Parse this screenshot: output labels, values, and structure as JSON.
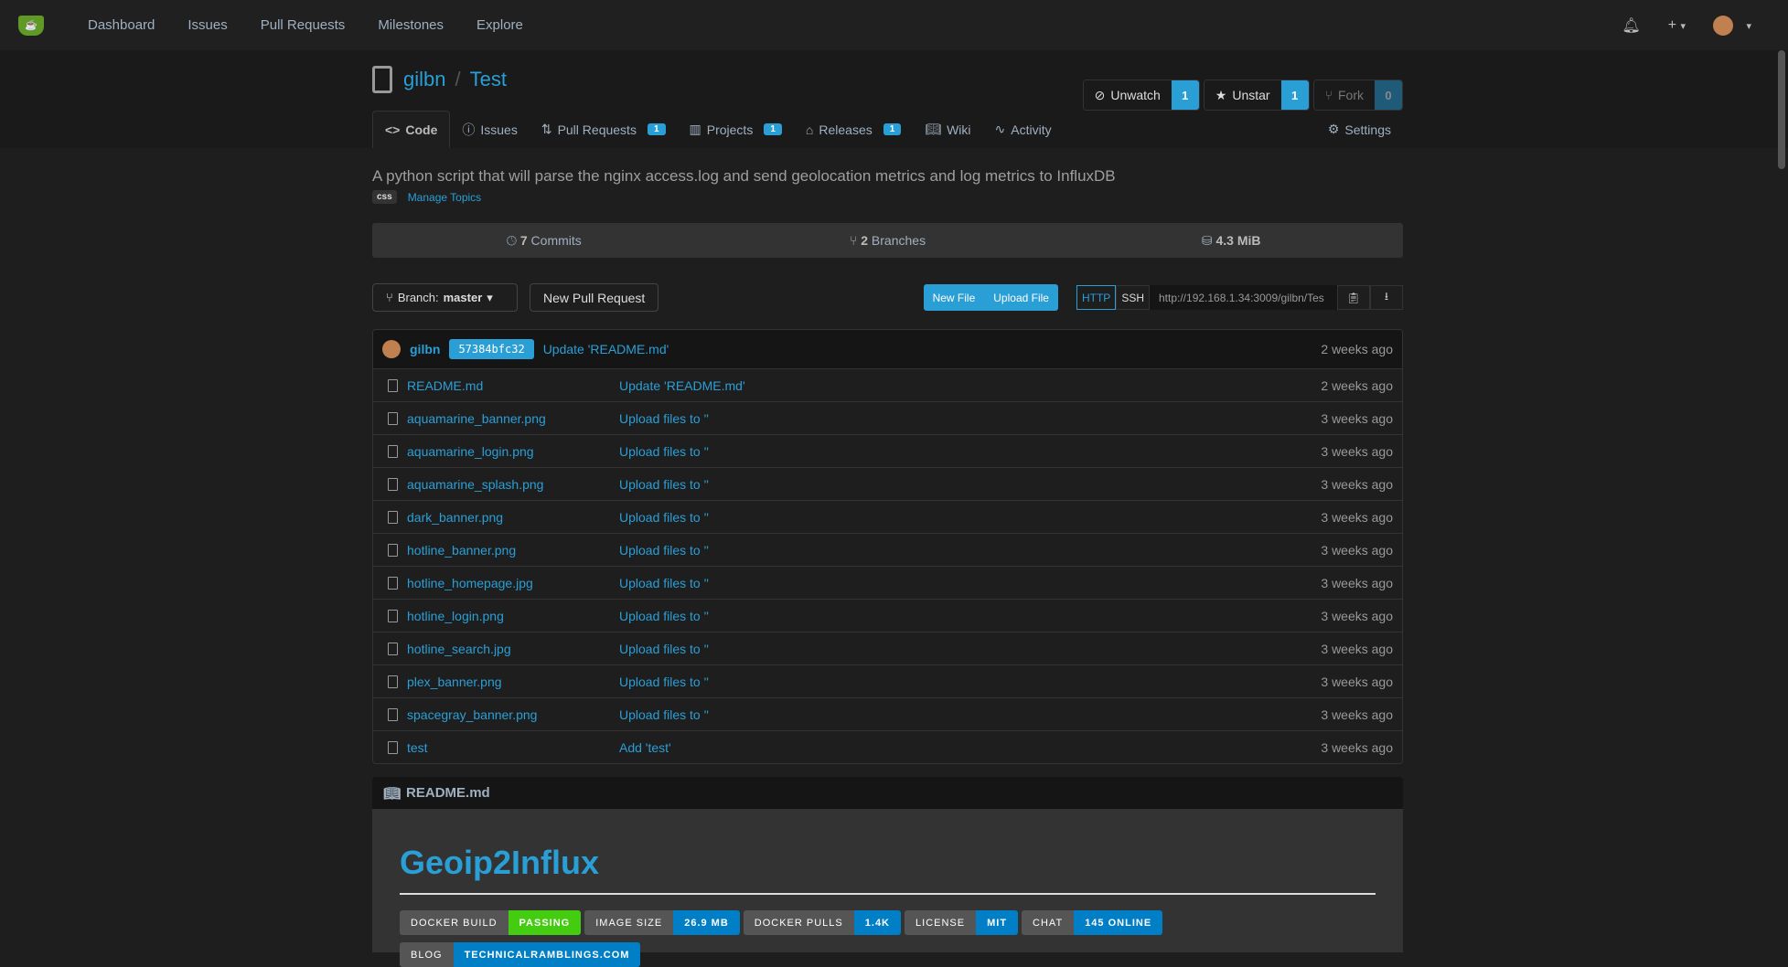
{
  "nav": {
    "items": [
      "Dashboard",
      "Issues",
      "Pull Requests",
      "Milestones",
      "Explore"
    ],
    "plus": "+",
    "caret": "▾"
  },
  "repo": {
    "owner": "gilbn",
    "sep": "/",
    "name": "Test",
    "description": "A python script that will parse the nginx access.log and send geolocation metrics and log metrics to InfluxDB",
    "topic": "css",
    "manage_topics": "Manage Topics"
  },
  "actions": {
    "watch": {
      "label": "Unwatch",
      "count": "1"
    },
    "star": {
      "label": "Unstar",
      "count": "1"
    },
    "fork": {
      "label": "Fork",
      "count": "0"
    }
  },
  "tabs": [
    {
      "label": "Code"
    },
    {
      "label": "Issues"
    },
    {
      "label": "Pull Requests",
      "badge": "1"
    },
    {
      "label": "Projects",
      "badge": "1"
    },
    {
      "label": "Releases",
      "badge": "1"
    },
    {
      "label": "Wiki"
    },
    {
      "label": "Activity"
    },
    {
      "label": "Settings"
    }
  ],
  "stats": {
    "commits_n": "7",
    "commits": "Commits",
    "branches_n": "2",
    "branches": "Branches",
    "size": "4.3 MiB"
  },
  "toolbar": {
    "branch_label": "Branch:",
    "branch": "master",
    "new_pr": "New Pull Request",
    "new_file": "New File",
    "upload": "Upload File",
    "http": "HTTP",
    "ssh": "SSH",
    "clone_url": "http://192.168.1.34:3009/gilbn/Tes"
  },
  "last_commit": {
    "author": "gilbn",
    "sha": "57384bfc32",
    "message": "Update 'README.md'",
    "age": "2 weeks ago"
  },
  "files": [
    {
      "name": "README.md",
      "msg": "Update 'README.md'",
      "age": "2 weeks ago"
    },
    {
      "name": "aquamarine_banner.png",
      "msg": "Upload files to ''",
      "age": "3 weeks ago"
    },
    {
      "name": "aquamarine_login.png",
      "msg": "Upload files to ''",
      "age": "3 weeks ago"
    },
    {
      "name": "aquamarine_splash.png",
      "msg": "Upload files to ''",
      "age": "3 weeks ago"
    },
    {
      "name": "dark_banner.png",
      "msg": "Upload files to ''",
      "age": "3 weeks ago"
    },
    {
      "name": "hotline_banner.png",
      "msg": "Upload files to ''",
      "age": "3 weeks ago"
    },
    {
      "name": "hotline_homepage.jpg",
      "msg": "Upload files to ''",
      "age": "3 weeks ago"
    },
    {
      "name": "hotline_login.png",
      "msg": "Upload files to ''",
      "age": "3 weeks ago"
    },
    {
      "name": "hotline_search.jpg",
      "msg": "Upload files to ''",
      "age": "3 weeks ago"
    },
    {
      "name": "plex_banner.png",
      "msg": "Upload files to ''",
      "age": "3 weeks ago"
    },
    {
      "name": "spacegray_banner.png",
      "msg": "Upload files to ''",
      "age": "3 weeks ago"
    },
    {
      "name": "test",
      "msg": "Add 'test'",
      "age": "3 weeks ago"
    }
  ],
  "readme": {
    "filename": "README.md",
    "title": "Geoip2Influx",
    "shields": [
      {
        "k": "DOCKER BUILD",
        "v": "PASSING",
        "color": "#4c1"
      },
      {
        "k": "IMAGE SIZE",
        "v": "26.9 MB",
        "color": "#007ec6"
      },
      {
        "k": "DOCKER PULLS",
        "v": "1.4K",
        "color": "#007ec6"
      },
      {
        "k": "LICENSE",
        "v": "MIT",
        "color": "#007ec6"
      },
      {
        "k": "CHAT",
        "v": "145 ONLINE",
        "color": "#007ec6"
      },
      {
        "k": "BLOG",
        "v": "TECHNICALRAMBLINGS.COM",
        "color": "#007ec6"
      }
    ]
  }
}
